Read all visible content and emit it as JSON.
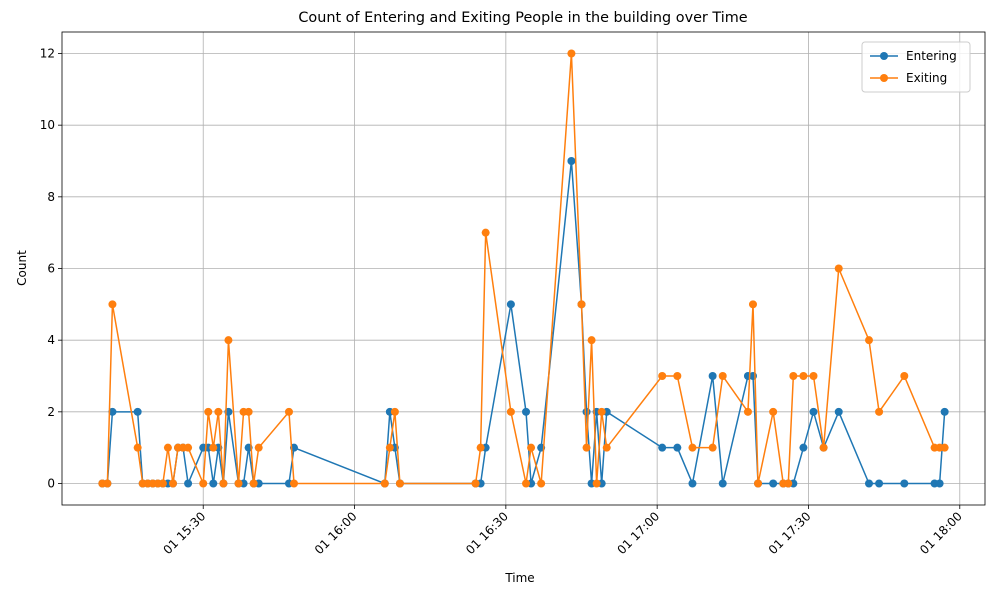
{
  "chart_data": {
    "type": "line",
    "title": "Count of Entering and Exiting People in the building over Time",
    "x_label": "Time",
    "y_label": "Count",
    "x": [
      "01 15:10",
      "01 15:11",
      "01 15:12",
      "01 15:17",
      "01 15:18",
      "01 15:19",
      "01 15:20",
      "01 15:21",
      "01 15:22",
      "01 15:23",
      "01 15:24",
      "01 15:25",
      "01 15:26",
      "01 15:27",
      "01 15:30",
      "01 15:31",
      "01 15:32",
      "01 15:33",
      "01 15:34",
      "01 15:35",
      "01 15:37",
      "01 15:38",
      "01 15:39",
      "01 15:40",
      "01 15:41",
      "01 15:47",
      "01 15:48",
      "01 16:06",
      "01 16:07",
      "01 16:08",
      "01 16:09",
      "01 16:24",
      "01 16:25",
      "01 16:26",
      "01 16:31",
      "01 16:34",
      "01 16:35",
      "01 16:37",
      "01 16:43",
      "01 16:45",
      "01 16:46",
      "01 16:47",
      "01 16:48",
      "01 16:49",
      "01 16:50",
      "01 17:01",
      "01 17:04",
      "01 17:07",
      "01 17:11",
      "01 17:13",
      "01 17:18",
      "01 17:19",
      "01 17:20",
      "01 17:23",
      "01 17:25",
      "01 17:26",
      "01 17:27",
      "01 17:29",
      "01 17:31",
      "01 17:33",
      "01 17:36",
      "01 17:42",
      "01 17:44",
      "01 17:49",
      "01 17:55",
      "01 17:56",
      "01 17:57"
    ],
    "series": [
      {
        "name": "Entering",
        "color": "#1f77b4",
        "values": [
          0,
          0,
          2,
          2,
          0,
          0,
          0,
          0,
          0,
          0,
          0,
          1,
          1,
          0,
          1,
          1,
          0,
          1,
          0,
          2,
          0,
          0,
          1,
          0,
          0,
          0,
          1,
          0,
          2,
          1,
          0,
          0,
          0,
          1,
          5,
          2,
          0,
          1,
          9,
          5,
          2,
          0,
          2,
          0,
          2,
          1,
          1,
          0,
          3,
          0,
          3,
          3,
          0,
          0,
          0,
          0,
          0,
          1,
          2,
          1,
          2,
          0,
          0,
          0,
          0,
          0,
          2
        ]
      },
      {
        "name": "Exiting",
        "color": "#ff7f0e",
        "values": [
          0,
          0,
          5,
          1,
          0,
          0,
          0,
          0,
          0,
          1,
          0,
          1,
          1,
          1,
          0,
          2,
          1,
          2,
          0,
          4,
          0,
          2,
          2,
          0,
          1,
          2,
          0,
          0,
          1,
          2,
          0,
          0,
          1,
          7,
          2,
          0,
          1,
          0,
          12,
          5,
          1,
          4,
          0,
          2,
          1,
          3,
          3,
          1,
          1,
          3,
          2,
          5,
          0,
          2,
          0,
          0,
          3,
          3,
          3,
          1,
          6,
          4,
          2,
          3,
          1,
          1,
          1
        ]
      }
    ],
    "xlim": [
      "01 15:02",
      "01 18:05"
    ],
    "xticks": [
      "01 15:30",
      "01 16:00",
      "01 16:30",
      "01 17:00",
      "01 17:30",
      "01 18:00"
    ],
    "ylim": [
      -0.6,
      12.6
    ],
    "yticks": [
      0,
      2,
      4,
      6,
      8,
      10,
      12
    ],
    "grid": true,
    "legend": "upper right",
    "marker": "circle"
  }
}
